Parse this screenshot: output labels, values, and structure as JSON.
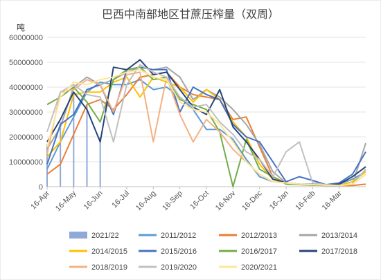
{
  "chart_data": {
    "type": "line",
    "title": "巴西中南部地区甘蔗压榨量（双周）",
    "ylabel": "吨",
    "ylim": [
      0,
      60000000
    ],
    "yticks": [
      "0",
      "10000000",
      "20000000",
      "30000000",
      "40000000",
      "50000000",
      "60000000"
    ],
    "xlim": [
      0,
      24
    ],
    "xticks": [
      {
        "label": "16-Apr",
        "x": 0
      },
      {
        "label": "16-May",
        "x": 2
      },
      {
        "label": "16-Jun",
        "x": 4
      },
      {
        "label": "16-Jul",
        "x": 6
      },
      {
        "label": "16-Aug",
        "x": 8
      },
      {
        "label": "16-Sep",
        "x": 10
      },
      {
        "label": "16-Oct",
        "x": 12
      },
      {
        "label": "16-Nov",
        "x": 14
      },
      {
        "label": "16-Dec",
        "x": 16
      },
      {
        "label": "16-Jan",
        "x": 18
      },
      {
        "label": "16-Feb",
        "x": 20
      },
      {
        "label": "16-Mar",
        "x": 22
      }
    ],
    "grid": "horizontal",
    "legend_position": "bottom",
    "bar_series": {
      "name": "2021/22",
      "color": "#8fa9d9",
      "x": [
        0,
        1,
        2,
        3,
        4
      ],
      "values": [
        17000000,
        26000000,
        38000000,
        33000000,
        20000000
      ]
    },
    "series": [
      {
        "name": "2011/2012",
        "color": "#5b9bd5",
        "values": [
          7000000,
          18000000,
          28000000,
          38000000,
          42000000,
          41000000,
          41000000,
          43000000,
          39000000,
          40000000,
          36000000,
          31000000,
          23000000,
          23000000,
          19000000,
          11000000,
          4000000,
          2000000,
          1500000,
          1000000,
          1000000,
          800000,
          1000000,
          3000000,
          6000000
        ]
      },
      {
        "name": "2012/2013",
        "color": "#ed7d31",
        "values": [
          5000000,
          9000000,
          21000000,
          33000000,
          35000000,
          31000000,
          37000000,
          44000000,
          45000000,
          46000000,
          40000000,
          37000000,
          36000000,
          35000000,
          27000000,
          28000000,
          16000000,
          4000000,
          1500000,
          1000000,
          800000,
          600000,
          500000,
          500000,
          1000000
        ]
      },
      {
        "name": "2013/2014",
        "color": "#a5a5a5",
        "values": [
          15000000,
          24000000,
          40000000,
          44000000,
          41000000,
          43000000,
          46000000,
          48000000,
          47000000,
          48000000,
          44000000,
          35000000,
          39000000,
          36000000,
          31000000,
          25000000,
          17000000,
          6000000,
          1500000,
          1000000,
          800000,
          600000,
          500000,
          1000000,
          17500000
        ]
      },
      {
        "name": "2014/2015",
        "color": "#ffc000",
        "values": [
          12000000,
          18000000,
          37000000,
          38000000,
          38000000,
          42000000,
          44000000,
          36000000,
          44000000,
          42000000,
          40000000,
          34000000,
          39000000,
          35000000,
          26000000,
          20000000,
          9000000,
          3000000,
          1500000,
          1000000,
          800000,
          600000,
          500000,
          2000000,
          6000000
        ]
      },
      {
        "name": "2015/2016",
        "color": "#4472c4",
        "values": [
          9000000,
          25000000,
          29000000,
          39000000,
          41000000,
          29000000,
          47000000,
          48000000,
          47000000,
          47000000,
          30000000,
          40000000,
          37000000,
          35000000,
          25000000,
          20000000,
          18000000,
          10000000,
          2000000,
          4000000,
          2500000,
          800000,
          1500000,
          5000000,
          14000000
        ]
      },
      {
        "name": "2016/2017",
        "color": "#70ad47",
        "values": [
          33000000,
          36000000,
          40000000,
          34000000,
          26000000,
          43000000,
          47000000,
          48000000,
          43000000,
          44000000,
          35000000,
          33000000,
          31000000,
          22000000,
          0,
          19000000,
          7000000,
          4000000,
          1000000,
          800000,
          600000,
          500000,
          500000,
          1000000,
          7000000
        ]
      },
      {
        "name": "2017/2018",
        "color": "#264478",
        "values": [
          18000000,
          27000000,
          38000000,
          31000000,
          18000000,
          48000000,
          47000000,
          51000000,
          45000000,
          46000000,
          39000000,
          32000000,
          29000000,
          39000000,
          24000000,
          18000000,
          11000000,
          3000000,
          1500000,
          1000000,
          800000,
          600000,
          1000000,
          4000000,
          8000000
        ]
      },
      {
        "name": "2018/2019",
        "color": "#f4b183",
        "values": [
          13000000,
          38000000,
          39000000,
          43000000,
          41000000,
          30000000,
          45000000,
          46000000,
          18000000,
          44000000,
          29000000,
          18000000,
          27000000,
          22000000,
          15000000,
          10000000,
          5000000,
          2000000,
          1500000,
          1000000,
          800000,
          600000,
          500000,
          1000000,
          5000000
        ]
      },
      {
        "name": "2019/2020",
        "color": "#c0c0c0",
        "values": [
          22000000,
          38000000,
          41000000,
          37000000,
          36000000,
          18000000,
          41000000,
          49000000,
          46000000,
          44000000,
          36000000,
          32000000,
          33000000,
          26000000,
          21000000,
          14000000,
          11000000,
          4000000,
          14000000,
          18000000,
          1500000,
          800000,
          500000,
          1000000,
          7000000
        ]
      },
      {
        "name": "2020/2021",
        "color": "#ffe699",
        "values": [
          16000000,
          36000000,
          42000000,
          41000000,
          43000000,
          44000000,
          46000000,
          47000000,
          44000000,
          43000000,
          34000000,
          31000000,
          30000000,
          25000000,
          18000000,
          10000000,
          5000000,
          2000000,
          1500000,
          1000000,
          800000,
          600000,
          500000,
          1000000,
          5000000
        ]
      }
    ]
  }
}
